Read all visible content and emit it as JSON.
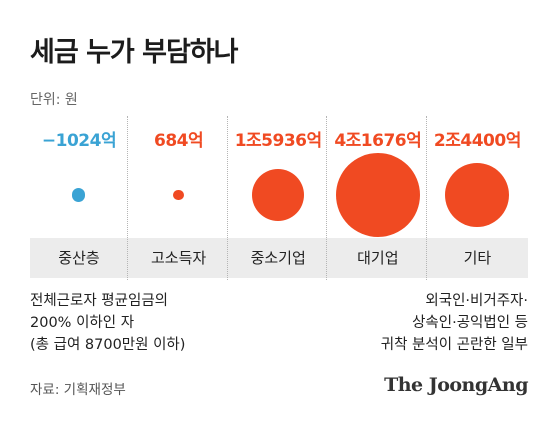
{
  "title": "세금 누가 부담하나",
  "unit": "단위: 원",
  "colors": {
    "blue": "#3aa3d4",
    "orange": "#f04a22"
  },
  "chart_data": {
    "type": "bubble",
    "categories": [
      "중산층",
      "고소득자",
      "중소기업",
      "대기업",
      "기타"
    ],
    "value_labels": [
      "−1024억",
      "684억",
      "1조5936억",
      "4조1676억",
      "2조4400억"
    ],
    "values": [
      -1024,
      684,
      15936,
      41676,
      24400
    ],
    "value_unit": "억 원"
  },
  "notes": {
    "left": [
      "전체근로자 평균임금의",
      "200% 이하인 자",
      "(총 급여 8700만원 이하)"
    ],
    "right": [
      "외국인·비거주자·",
      "상속인·공익법인 등",
      "귀착 분석이 곤란한 일부"
    ]
  },
  "source": "자료: 기획재정부",
  "logo": "The JoongAng"
}
